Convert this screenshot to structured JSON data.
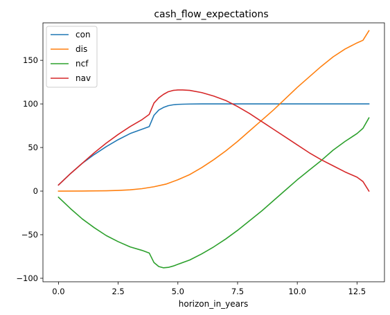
{
  "chart_data": {
    "type": "line",
    "title": "cash_flow_expectations",
    "xlabel": "horizon_in_years",
    "ylabel": "",
    "xlim": [
      -0.65,
      13.65
    ],
    "ylim": [
      -104,
      193
    ],
    "xticks": [
      0,
      2.5,
      5,
      7.5,
      10,
      12.5
    ],
    "xtick_labels": [
      "0.0",
      "2.5",
      "5.0",
      "7.5",
      "10.0",
      "12.5"
    ],
    "yticks": [
      -100,
      -50,
      0,
      50,
      100,
      150
    ],
    "ytick_labels": [
      "−100",
      "−50",
      "0",
      "50",
      "100",
      "150"
    ],
    "grid": false,
    "legend_position": "top-left",
    "series": [
      {
        "name": "con",
        "color": "#1f77b4",
        "x": [
          0,
          0.5,
          1,
          1.5,
          2,
          2.5,
          3,
          3.5,
          3.8,
          4.0,
          4.2,
          4.4,
          4.6,
          4.8,
          5.0,
          5.2,
          5.5,
          6,
          6.5,
          7,
          8,
          9,
          10,
          11,
          12,
          13
        ],
        "y": [
          7,
          20,
          32,
          42,
          51,
          59,
          66,
          71,
          74,
          87,
          93,
          96,
          98,
          99,
          99.5,
          99.7,
          99.9,
          100,
          100,
          100,
          100,
          100,
          100,
          100,
          100,
          100
        ]
      },
      {
        "name": "dis",
        "color": "#ff7f0e",
        "x": [
          0,
          1,
          2,
          2.5,
          3,
          3.5,
          4,
          4.5,
          5,
          5.5,
          6,
          6.5,
          7,
          7.5,
          8,
          8.5,
          9,
          9.5,
          10,
          10.5,
          11,
          11.5,
          12,
          12.5,
          12.75,
          13
        ],
        "y": [
          0,
          0.1,
          0.4,
          0.8,
          1.5,
          2.8,
          5,
          8,
          13,
          19,
          27,
          36,
          46,
          57,
          69,
          81,
          93,
          106,
          119,
          131,
          143,
          154,
          163,
          170,
          173,
          184
        ]
      },
      {
        "name": "ncf",
        "color": "#2ca02c",
        "x": [
          0,
          0.5,
          1,
          1.5,
          2,
          2.5,
          3,
          3.5,
          3.8,
          4.0,
          4.2,
          4.4,
          4.6,
          4.8,
          5.0,
          5.5,
          6,
          6.5,
          7,
          7.5,
          8,
          8.5,
          9,
          9.5,
          10,
          10.5,
          11,
          11.5,
          12,
          12.5,
          12.75,
          13
        ],
        "y": [
          -7,
          -20,
          -32,
          -42,
          -51,
          -58,
          -64,
          -68,
          -71,
          -82,
          -86.5,
          -88,
          -87.5,
          -86,
          -84,
          -79,
          -72,
          -64,
          -55,
          -45,
          -34,
          -23,
          -11,
          1,
          13,
          24,
          35,
          47,
          57,
          66,
          72,
          84
        ]
      },
      {
        "name": "nav",
        "color": "#d62728",
        "x": [
          0,
          0.5,
          1,
          1.5,
          2,
          2.5,
          3,
          3.5,
          3.8,
          4.0,
          4.2,
          4.4,
          4.6,
          4.8,
          5.0,
          5.2,
          5.5,
          6,
          6.5,
          7,
          7.5,
          8,
          8.5,
          9,
          9.5,
          10,
          10.5,
          11,
          11.5,
          12,
          12.5,
          12.75,
          13
        ],
        "y": [
          7,
          20,
          32,
          44,
          55,
          65,
          74,
          82,
          88,
          101,
          107,
          111,
          114,
          115.5,
          116,
          116,
          115.5,
          113,
          109,
          104,
          97,
          89,
          80,
          71,
          62,
          53,
          44,
          36,
          29,
          22,
          16,
          11,
          0
        ]
      }
    ]
  }
}
